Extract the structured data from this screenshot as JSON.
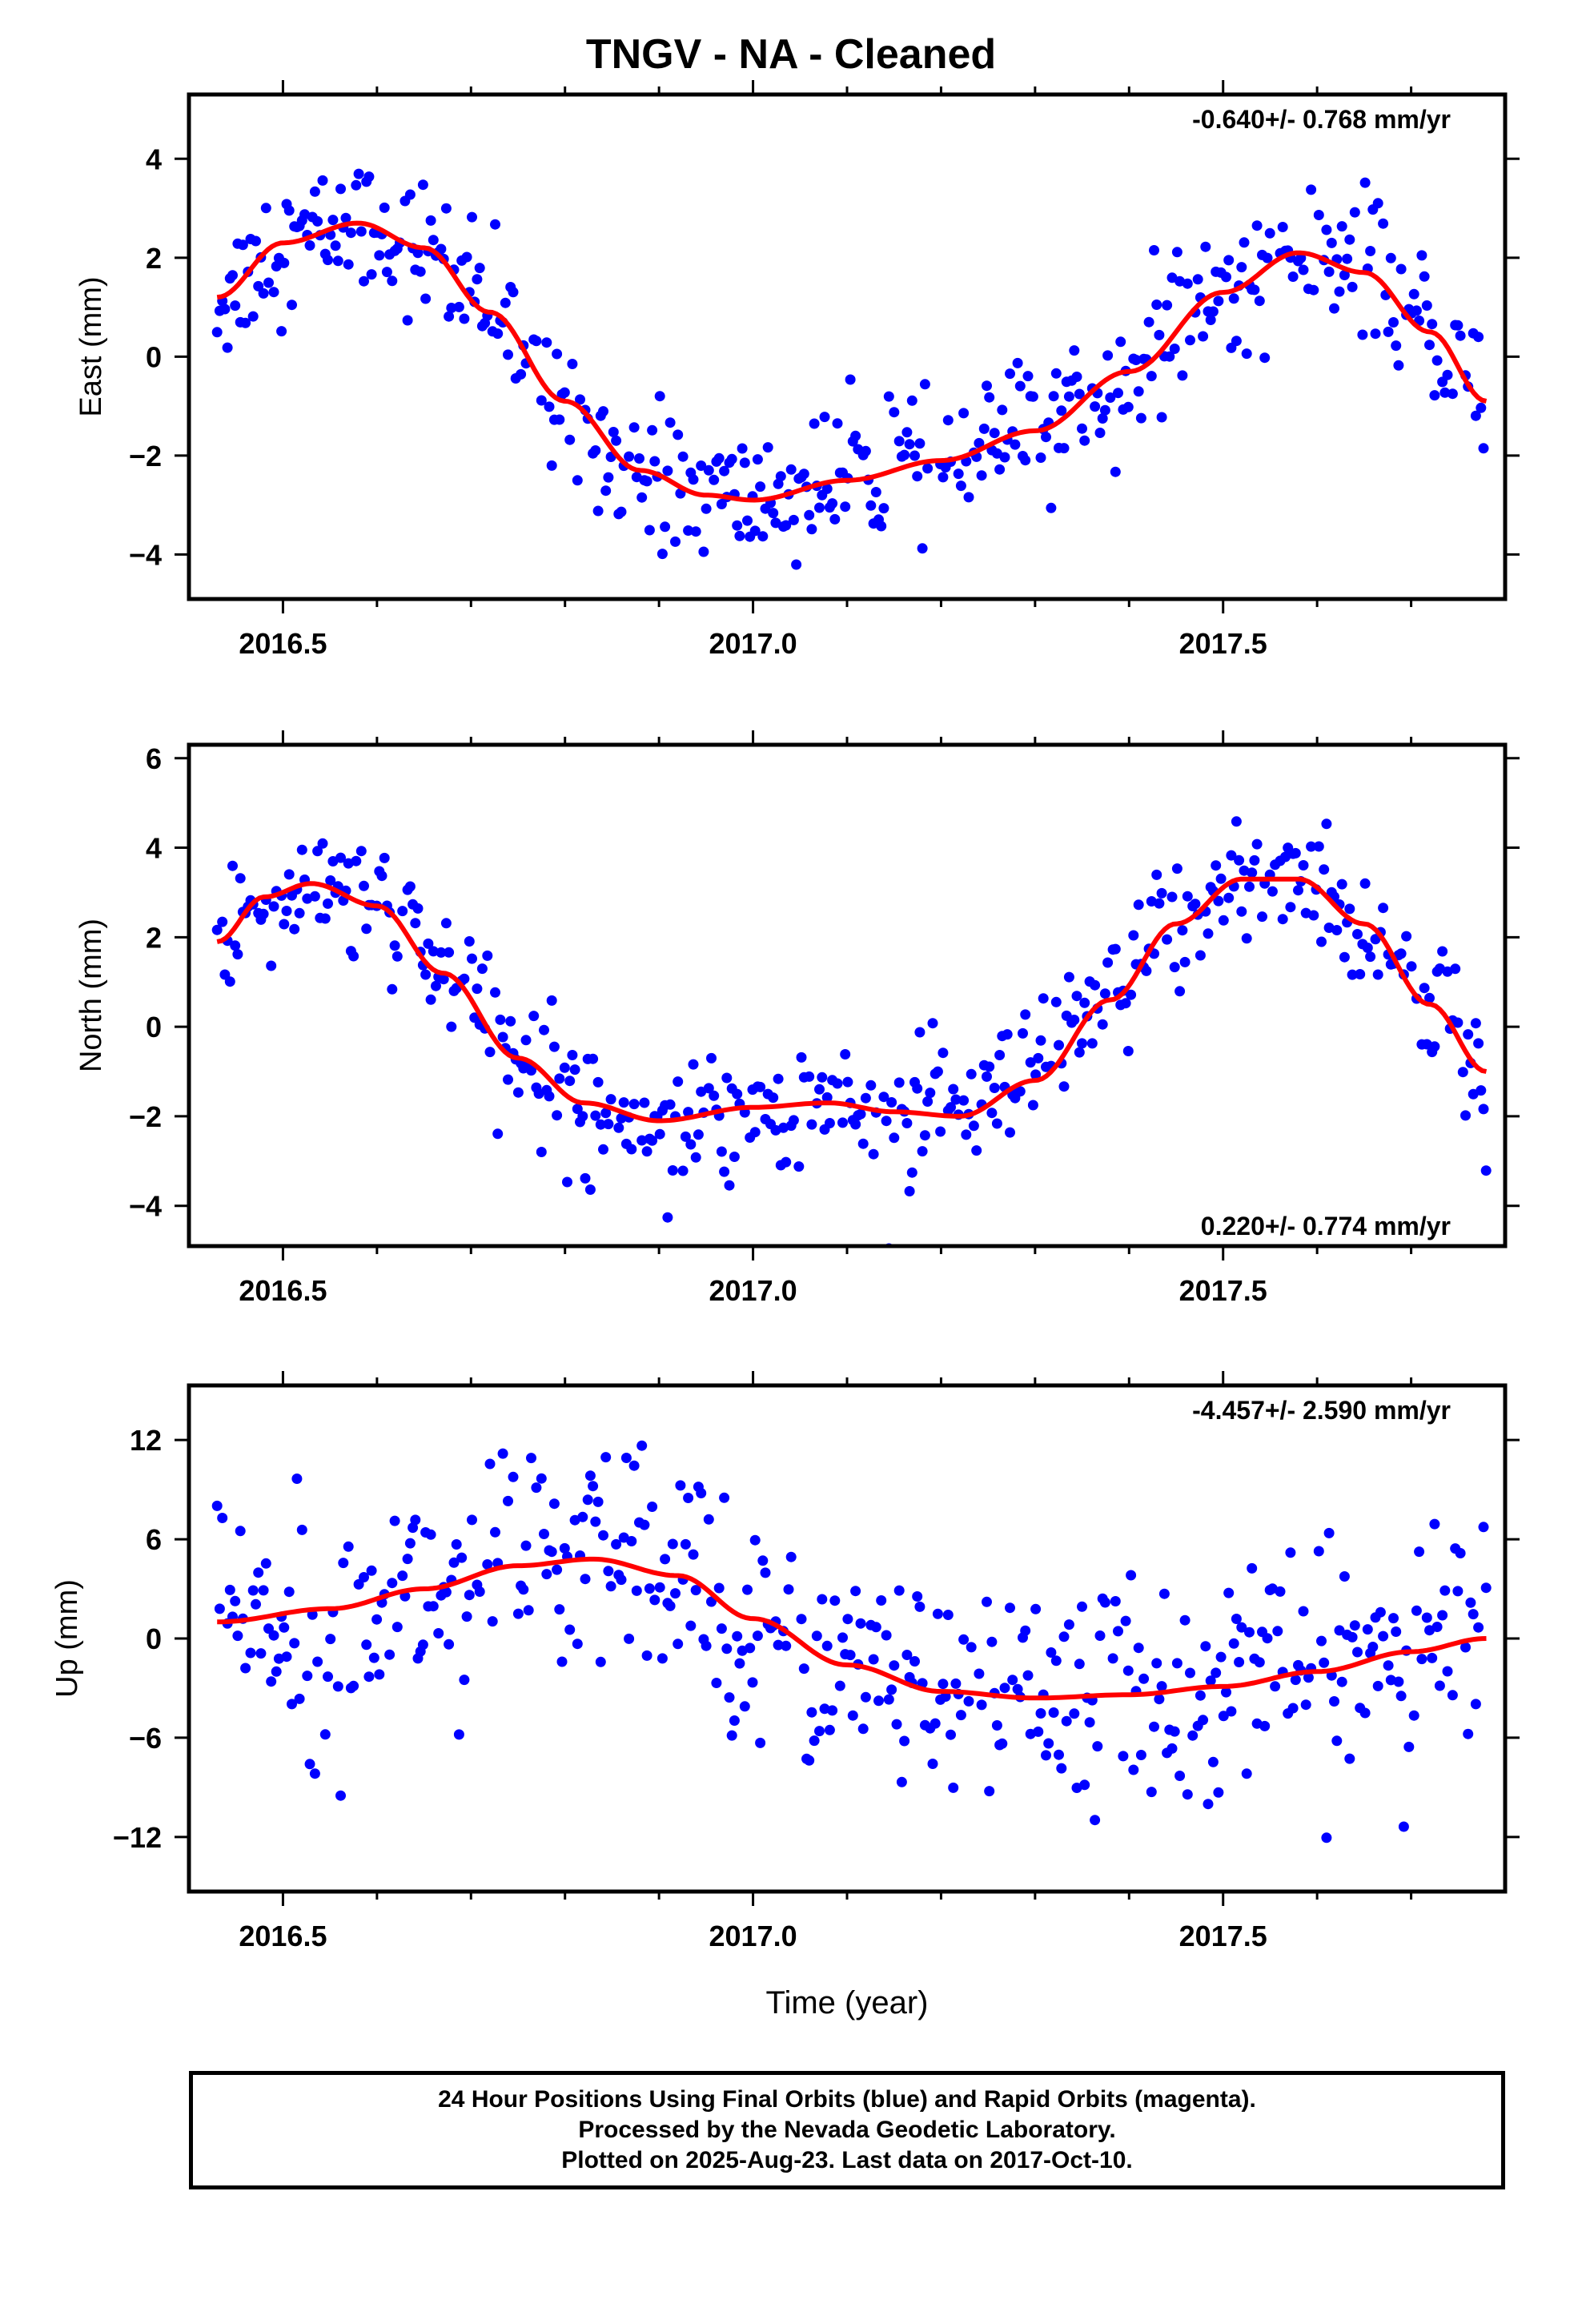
{
  "title": "TNGV  - NA - Cleaned",
  "footer": {
    "line1": "24 Hour Positions Using Final Orbits (blue) and Rapid Orbits (magenta).",
    "line2": "Processed by the Nevada Geodetic Laboratory.",
    "line3": "Plotted on 2025-Aug-23. Last data on 2017-Oct-10."
  },
  "colors": {
    "points": "#0000ff",
    "fit": "#ff0000",
    "frame": "#000000"
  },
  "chart_data": [
    {
      "type": "scatter",
      "ylabel": "East (mm)",
      "xlabel": "",
      "rate": "-0.640+/- 0.768 mm/yr",
      "rate_position": "top-right",
      "xlim": [
        2016.4,
        2017.8
      ],
      "ylim": [
        -4.9,
        5.3
      ],
      "xticks": [
        2016.5,
        2017.0,
        2017.5
      ],
      "xtick_labels": [
        "2016.5",
        "2017.0",
        "2017.5"
      ],
      "yticks": [
        -4,
        -2,
        0,
        2,
        4
      ],
      "ytick_labels": [
        "−4",
        "−2",
        "0",
        "2",
        "4"
      ],
      "fit_x": [
        2016.43,
        2016.5,
        2016.58,
        2016.65,
        2016.72,
        2016.8,
        2016.88,
        2016.95,
        2017.0,
        2017.1,
        2017.2,
        2017.3,
        2017.4,
        2017.5,
        2017.58,
        2017.65,
        2017.72,
        2017.78
      ],
      "fit_y": [
        1.2,
        2.3,
        2.7,
        2.2,
        0.9,
        -0.9,
        -2.3,
        -2.8,
        -2.9,
        -2.5,
        -2.1,
        -1.5,
        -0.3,
        1.3,
        2.1,
        1.7,
        0.5,
        -0.9
      ],
      "scatter_amp": 0.85
    },
    {
      "type": "scatter",
      "ylabel": "North (mm)",
      "xlabel": "",
      "rate": "0.220+/- 0.774 mm/yr",
      "rate_position": "bottom-right",
      "xlim": [
        2016.4,
        2017.8
      ],
      "ylim": [
        -4.9,
        6.3
      ],
      "xticks": [
        2016.5,
        2017.0,
        2017.5
      ],
      "xtick_labels": [
        "2016.5",
        "2017.0",
        "2017.5"
      ],
      "yticks": [
        -4,
        -2,
        0,
        2,
        4,
        6
      ],
      "ytick_labels": [
        "−4",
        "−2",
        "0",
        "2",
        "4",
        "6"
      ],
      "fit_x": [
        2016.43,
        2016.48,
        2016.53,
        2016.6,
        2016.67,
        2016.75,
        2016.82,
        2016.9,
        2017.0,
        2017.08,
        2017.15,
        2017.22,
        2017.3,
        2017.38,
        2017.45,
        2017.52,
        2017.58,
        2017.65,
        2017.72,
        2017.78
      ],
      "fit_y": [
        1.9,
        2.9,
        3.2,
        2.7,
        1.2,
        -0.7,
        -1.7,
        -2.1,
        -1.8,
        -1.7,
        -1.9,
        -2.0,
        -1.2,
        0.6,
        2.3,
        3.3,
        3.3,
        2.3,
        0.5,
        -1.0
      ],
      "scatter_amp": 0.95
    },
    {
      "type": "scatter",
      "ylabel": "Up (mm)",
      "xlabel": "Time (year)",
      "rate": "-4.457+/- 2.590 mm/yr",
      "rate_position": "top-right",
      "xlim": [
        2016.4,
        2017.8
      ],
      "ylim": [
        -15.3,
        15.3
      ],
      "xticks": [
        2016.5,
        2017.0,
        2017.5
      ],
      "xtick_labels": [
        "2016.5",
        "2017.0",
        "2017.5"
      ],
      "yticks": [
        -12,
        -6,
        0,
        6,
        12
      ],
      "ytick_labels": [
        "−12",
        "−6",
        "0",
        "6",
        "12"
      ],
      "fit_x": [
        2016.43,
        2016.55,
        2016.65,
        2016.75,
        2016.83,
        2016.92,
        2017.0,
        2017.1,
        2017.2,
        2017.3,
        2017.4,
        2017.5,
        2017.6,
        2017.7,
        2017.78
      ],
      "fit_y": [
        1.0,
        1.8,
        3.0,
        4.4,
        4.8,
        3.8,
        1.2,
        -1.6,
        -3.2,
        -3.6,
        -3.4,
        -2.9,
        -2.0,
        -0.8,
        0.0
      ],
      "scatter_amp": 4.2
    }
  ]
}
